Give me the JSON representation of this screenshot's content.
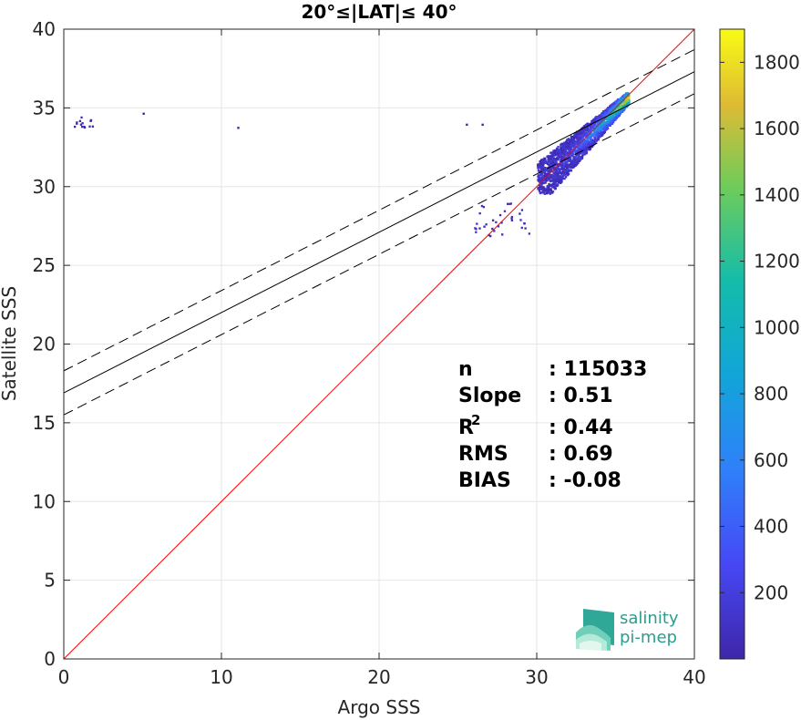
{
  "chart_data": {
    "type": "heatmap",
    "title": "20°≤|LAT|≤ 40°",
    "xlabel": "Argo SSS",
    "ylabel": "Satellite SSS",
    "xlim": [
      0,
      40
    ],
    "ylim": [
      0,
      40
    ],
    "xticks": [
      0,
      10,
      20,
      30,
      40
    ],
    "yticks": [
      0,
      5,
      10,
      15,
      20,
      25,
      30,
      35,
      40
    ],
    "grid": true,
    "colorbar": {
      "range": [
        0,
        1900
      ],
      "ticks": [
        200,
        400,
        600,
        800,
        1000,
        1200,
        1400,
        1600,
        1800
      ],
      "colormap": "parula"
    },
    "lines": [
      {
        "role": "identity",
        "color": "#ff0000",
        "style": "solid",
        "intercept": 0,
        "slope": 1
      },
      {
        "role": "regression",
        "color": "#000000",
        "style": "solid",
        "intercept": 16.9,
        "slope": 0.51
      },
      {
        "role": "upper-bound",
        "color": "#000000",
        "style": "dashed",
        "intercept": 18.3,
        "slope": 0.51
      },
      {
        "role": "lower-bound",
        "color": "#000000",
        "style": "dashed",
        "intercept": 15.5,
        "slope": 0.51
      }
    ],
    "density_clusters": [
      {
        "x_range": [
          30.0,
          35.8
        ],
        "y_range": [
          29.5,
          35.9
        ],
        "peak_count": 1900
      },
      {
        "x_range": [
          0.5,
          2.3
        ],
        "y_range": [
          33.7,
          34.4
        ],
        "peak_count": 60
      },
      {
        "x_range": [
          26.0,
          29.5
        ],
        "y_range": [
          26.8,
          29.0
        ],
        "peak_count": 40
      }
    ],
    "stats": [
      {
        "label": "n",
        "value": ": 115033"
      },
      {
        "label": "Slope",
        "value": ": 0.51"
      },
      {
        "label": "R",
        "sup": "2",
        "value": ": 0.44"
      },
      {
        "label": "RMS",
        "value": ": 0.69"
      },
      {
        "label": "BIAS",
        "value": ": -0.08"
      }
    ]
  },
  "logo": {
    "line1": "salinity",
    "line2": "pi-mep"
  }
}
